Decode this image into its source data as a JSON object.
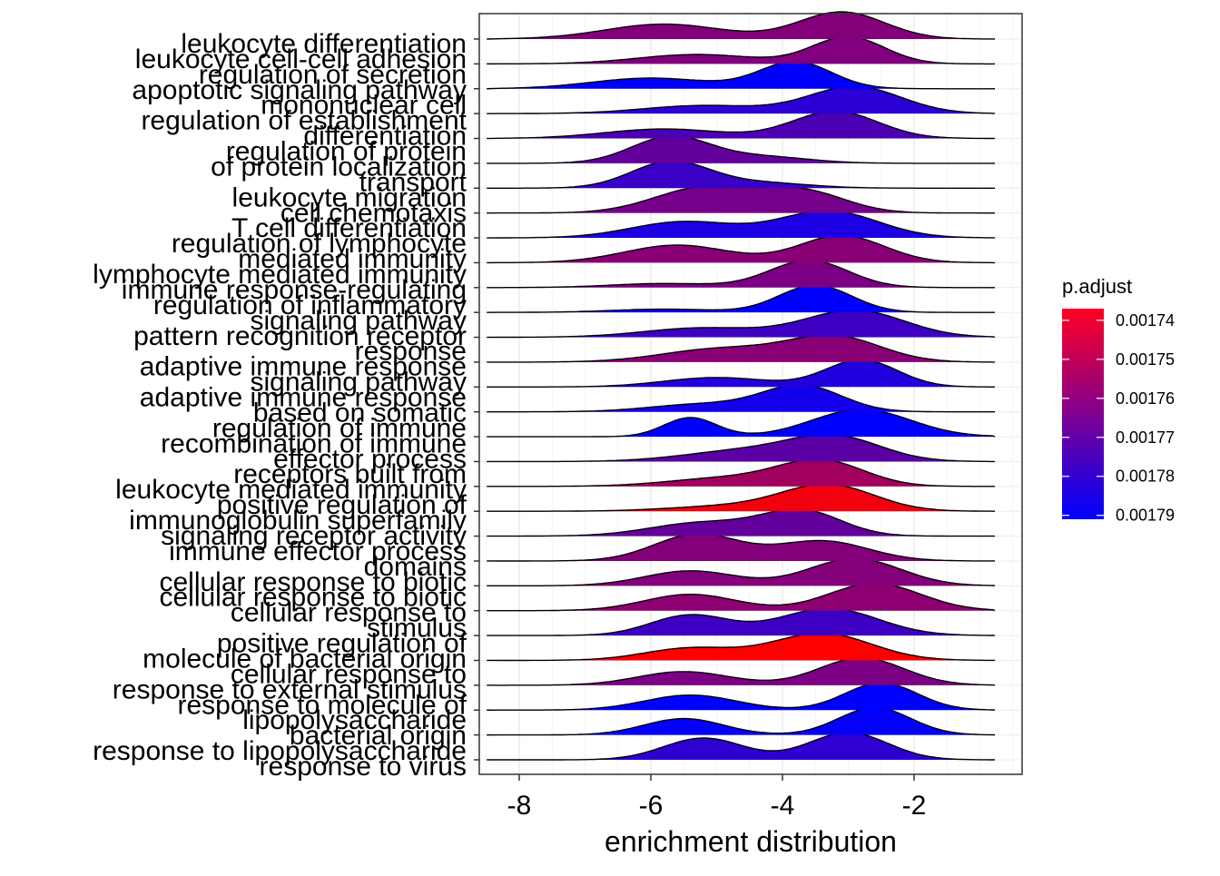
{
  "chart_data": {
    "type": "ridgeline",
    "xlabel": "enrichment distribution",
    "x_ticks": [
      -8,
      -6,
      -4,
      -2
    ],
    "xlim": [
      -8.6,
      -0.6
    ],
    "legend": {
      "title": "p.adjust",
      "placement": "right",
      "ticks": [
        "0.00174",
        "0.00175",
        "0.00176",
        "0.00177",
        "0.00178",
        "0.00179"
      ],
      "tick_values": [
        0.00174,
        0.00175,
        0.00176,
        0.00177,
        0.00178,
        0.00179
      ],
      "range": [
        0.001737,
        0.001791
      ],
      "color_high_p": "#0000FF",
      "color_low_p": "#FF0000"
    },
    "grid": true,
    "ridges": [
      {
        "label": "leukocyte differentiation",
        "p": 0.001763,
        "range": [
          -8.3,
          -0.8
        ],
        "peaks": [
          [
            -5.8,
            0.55,
            0.9
          ],
          [
            -3.1,
            1.0,
            0.65
          ]
        ]
      },
      {
        "label": "leukocyte cell-cell adhesion",
        "p": 0.001764,
        "range": [
          -8.3,
          -0.8
        ],
        "peaks": [
          [
            -5.3,
            0.35,
            0.9
          ],
          [
            -3.0,
            1.0,
            0.55
          ]
        ]
      },
      {
        "label": "regulation of secretion",
        "p": 0.001791,
        "range": [
          -8.3,
          -0.8
        ],
        "peaks": [
          [
            -6.0,
            0.4,
            0.9
          ],
          [
            -3.8,
            1.0,
            0.55
          ]
        ]
      },
      {
        "label": "apoptotic signaling pathway",
        "p": 0.001782,
        "range": [
          -8.3,
          -0.8
        ],
        "peaks": [
          [
            -5.2,
            0.3,
            0.9
          ],
          [
            -2.9,
            1.0,
            0.7
          ]
        ]
      },
      {
        "label": "mononuclear cell differentiation",
        "p": 0.001775,
        "range": [
          -8.3,
          -0.8
        ],
        "peaks": [
          [
            -5.8,
            0.35,
            0.9
          ],
          [
            -3.2,
            1.0,
            0.65
          ]
        ]
      },
      {
        "label": "regulation of establishment of protein localization",
        "p": 0.00177,
        "range": [
          -8.3,
          -0.8
        ],
        "peaks": [
          [
            -5.7,
            1.0,
            0.6
          ],
          [
            -4.3,
            0.25,
            0.7
          ]
        ]
      },
      {
        "label": "regulation of protein transport",
        "p": 0.001779,
        "range": [
          -8.3,
          -0.8
        ],
        "peaks": [
          [
            -5.7,
            1.0,
            0.6
          ],
          [
            -4.3,
            0.2,
            0.7
          ]
        ]
      },
      {
        "label": "leukocyte migration",
        "p": 0.001766,
        "range": [
          -8.3,
          -0.8
        ],
        "peaks": [
          [
            -5.2,
            1.0,
            0.75
          ],
          [
            -3.7,
            0.85,
            0.65
          ]
        ]
      },
      {
        "label": "cell chemotaxis",
        "p": 0.001785,
        "range": [
          -8.3,
          -0.8
        ],
        "peaks": [
          [
            -5.5,
            0.6,
            0.8
          ],
          [
            -3.3,
            1.0,
            0.75
          ]
        ]
      },
      {
        "label": "T cell differentiation",
        "p": 0.001762,
        "range": [
          -8.3,
          -0.8
        ],
        "peaks": [
          [
            -5.6,
            0.65,
            0.8
          ],
          [
            -3.1,
            1.0,
            0.65
          ]
        ]
      },
      {
        "label": "regulation of lymphocyte mediated immunity",
        "p": 0.001765,
        "range": [
          -8.3,
          -0.8
        ],
        "peaks": [
          [
            -5.8,
            0.15,
            0.8
          ],
          [
            -3.6,
            1.0,
            0.6
          ]
        ]
      },
      {
        "label": "immune response-regulating signaling pathway",
        "p": 0.001791,
        "range": [
          -8.3,
          -0.8
        ],
        "peaks": [
          [
            -5.8,
            0.12,
            0.8
          ],
          [
            -3.5,
            1.0,
            0.55
          ]
        ]
      },
      {
        "label": "regulation of inflammatory response",
        "p": 0.001778,
        "range": [
          -8.3,
          -0.8
        ],
        "peaks": [
          [
            -5.2,
            0.35,
            0.9
          ],
          [
            -2.9,
            1.0,
            0.75
          ]
        ]
      },
      {
        "label": "pattern recognition receptor signaling pathway",
        "p": 0.001762,
        "range": [
          -8.3,
          -0.8
        ],
        "peaks": [
          [
            -4.9,
            0.55,
            0.9
          ],
          [
            -3.2,
            1.0,
            0.7
          ]
        ]
      },
      {
        "label": "adaptive immune response",
        "p": 0.001784,
        "range": [
          -8.3,
          -0.8
        ],
        "peaks": [
          [
            -5.0,
            0.35,
            0.8
          ],
          [
            -2.8,
            1.0,
            0.55
          ]
        ]
      },
      {
        "label": "adaptive immune response based on somatic recombination of immune receptors built from immunoglobulin superfamily domains",
        "p": 0.001787,
        "range": [
          -8.3,
          -0.8
        ],
        "peaks": [
          [
            -5.2,
            0.3,
            0.8
          ],
          [
            -3.7,
            1.0,
            0.6
          ]
        ]
      },
      {
        "label": "regulation of immune effector process",
        "p": 0.001791,
        "range": [
          -8.3,
          -0.8
        ],
        "peaks": [
          [
            -5.4,
            0.7,
            0.4
          ],
          [
            -2.8,
            1.0,
            0.75
          ]
        ]
      },
      {
        "label": "leukocyte mediated immunity",
        "p": 0.001772,
        "range": [
          -8.3,
          -0.8
        ],
        "peaks": [
          [
            -4.6,
            0.45,
            0.9
          ],
          [
            -3.2,
            1.0,
            0.7
          ]
        ]
      },
      {
        "label": "positive regulation of immune effector process",
        "p": 0.001757,
        "range": [
          -8.3,
          -0.8
        ],
        "peaks": [
          [
            -4.8,
            0.35,
            0.9
          ],
          [
            -3.4,
            1.0,
            0.65
          ]
        ]
      },
      {
        "label": "signaling receptor activity",
        "p": 0.00174,
        "range": [
          -8.3,
          -0.8
        ],
        "peaks": [
          [
            -4.8,
            0.2,
            0.9
          ],
          [
            -3.3,
            1.0,
            0.7
          ]
        ]
      },
      {
        "label": "immune effector process",
        "p": 0.00177,
        "range": [
          -8.3,
          -0.8
        ],
        "peaks": [
          [
            -5.2,
            0.55,
            0.8
          ],
          [
            -3.7,
            1.0,
            0.6
          ]
        ]
      },
      {
        "label": "cellular response to biotic stimulus",
        "p": 0.001763,
        "range": [
          -8.3,
          -0.8
        ],
        "peaks": [
          [
            -5.3,
            1.0,
            0.65
          ],
          [
            -3.4,
            0.75,
            0.7
          ]
        ]
      },
      {
        "label": "cellular response to molecule of bacterial origin",
        "p": 0.001763,
        "range": [
          -8.3,
          -0.8
        ],
        "peaks": [
          [
            -5.4,
            0.55,
            0.7
          ],
          [
            -2.9,
            1.0,
            0.7
          ]
        ]
      },
      {
        "label": "cellular response to lipopolysaccharide",
        "p": 0.001761,
        "range": [
          -8.3,
          -0.8
        ],
        "peaks": [
          [
            -5.4,
            0.6,
            0.7
          ],
          [
            -2.6,
            1.0,
            0.7
          ]
        ]
      },
      {
        "label": "positive regulation of response to external stimulus",
        "p": 0.001778,
        "range": [
          -8.3,
          -0.8
        ],
        "peaks": [
          [
            -5.4,
            0.75,
            0.6
          ],
          [
            -3.3,
            1.0,
            0.75
          ]
        ]
      },
      {
        "label": "response to molecule of bacterial origin",
        "p": 0.001737,
        "range": [
          -8.3,
          -0.8
        ],
        "peaks": [
          [
            -5.4,
            0.45,
            0.7
          ],
          [
            -3.4,
            1.0,
            0.75
          ]
        ]
      },
      {
        "label": "response to lipopolysaccharide",
        "p": 0.001765,
        "range": [
          -8.3,
          -0.8
        ],
        "peaks": [
          [
            -5.5,
            0.5,
            0.7
          ],
          [
            -2.8,
            1.0,
            0.65
          ]
        ]
      },
      {
        "label": "response to virus",
        "p": 0.001791,
        "range": [
          -8.3,
          -0.8
        ],
        "peaks": [
          [
            -5.4,
            0.55,
            0.7
          ],
          [
            -2.5,
            1.0,
            0.55
          ]
        ]
      },
      {
        "label": "",
        "p": 0.00179,
        "range": [
          -8.3,
          -0.8
        ],
        "peaks": [
          [
            -5.5,
            0.6,
            0.6
          ],
          [
            -2.6,
            1.0,
            0.55
          ]
        ]
      },
      {
        "label": "",
        "p": 0.001781,
        "range": [
          -8.3,
          -0.8
        ],
        "peaks": [
          [
            -5.2,
            0.8,
            0.6
          ],
          [
            -3.0,
            1.0,
            0.6
          ]
        ]
      }
    ],
    "label_lines": [
      "leukocyte differentiation",
      "leukocyte cell-cell adhesion",
      "regulation of secretion",
      "apoptotic signaling pathway",
      "mononuclear cell",
      "regulation of establishment",
      "differentiation",
      "regulation of protein",
      "of protein localization",
      "transport",
      "leukocyte migration",
      "cell chemotaxis",
      "T cell differentiation",
      "regulation of lymphocyte",
      "mediated immunity",
      "lymphocyte mediated immunity",
      "immune response-regulating",
      "regulation of inflammatory",
      "signaling pathway",
      "pattern recognition receptor",
      "response",
      "adaptive immune response",
      "signaling pathway",
      "adaptive immune response",
      "based on somatic",
      "regulation of immune",
      "recombination of immune",
      "effector process",
      "receptors built from",
      "leukocyte mediated immunity",
      "positive regulation of",
      "immunoglobulin superfamily",
      "signaling receptor activity",
      "immune effector process",
      "domains",
      "cellular response to biotic",
      "cellular response to biotic",
      "cellular response to",
      "stimulus",
      "positive regulation of",
      "molecule of bacterial origin",
      "cellular response to",
      "response to external stimulus",
      "response to molecule of",
      "lipopolysaccharide",
      "bacterial origin",
      "response to lipopolysaccharide",
      "response to virus"
    ]
  }
}
